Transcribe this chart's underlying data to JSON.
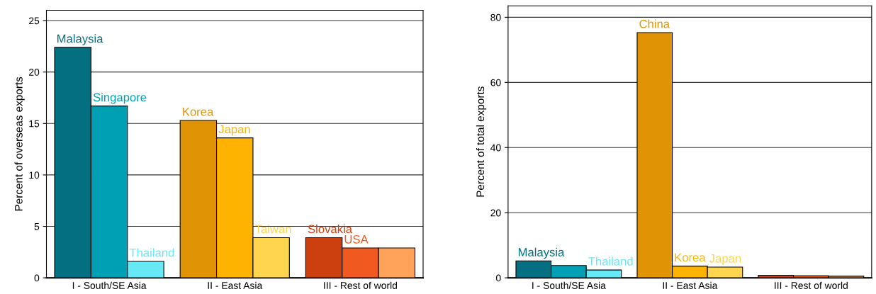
{
  "chart_data": [
    {
      "type": "bar",
      "ylabel": "Percent of overseas exports",
      "categories": [
        "I - South/SE Asia",
        "II - East Asia",
        "III - Rest of world"
      ],
      "ylim": [
        0,
        26
      ],
      "yticks": [
        0,
        5,
        10,
        15,
        20,
        25
      ],
      "grid": "y",
      "series": [
        {
          "colors": [
            "#036f80",
            "#e09405",
            "#cc3f0f"
          ],
          "values": [
            22.4,
            15.3,
            3.9
          ],
          "value_labels": [
            "Malaysia",
            "Korea",
            "Slovakia"
          ]
        },
        {
          "colors": [
            "#00a0b4",
            "#fdb300",
            "#f05a20"
          ],
          "values": [
            16.7,
            13.6,
            2.9
          ],
          "value_labels": [
            "Singapore",
            "Japan",
            "USA"
          ]
        },
        {
          "colors": [
            "#66e8f5",
            "#ffd44f",
            "#ffa35a"
          ],
          "values": [
            1.6,
            3.9,
            2.9
          ],
          "value_labels": [
            "Thailand",
            "Taiwan",
            null
          ]
        }
      ]
    },
    {
      "type": "bar",
      "ylabel": "Percent of total exports",
      "categories": [
        "I - South/SE Asia",
        "II - East Asia",
        "III - Rest of world"
      ],
      "ylim": [
        0,
        83.5
      ],
      "yticks": [
        0,
        20,
        40,
        60,
        80
      ],
      "grid": "y",
      "series": [
        {
          "colors": [
            "#036f80",
            "#e09405",
            "#cc3f0f"
          ],
          "values": [
            5.2,
            75.3,
            0.8
          ],
          "value_labels": [
            "Malaysia",
            "China",
            null
          ]
        },
        {
          "colors": [
            "#00a0b4",
            "#fdb300",
            "#f05a20"
          ],
          "values": [
            3.8,
            3.6,
            0.6
          ],
          "value_labels": [
            null,
            "Korea",
            null
          ]
        },
        {
          "colors": [
            "#66e8f5",
            "#ffd44f",
            "#ffa35a"
          ],
          "values": [
            2.4,
            3.3,
            0.5
          ],
          "value_labels": [
            "Thailand",
            "Japan",
            null
          ]
        }
      ]
    }
  ]
}
